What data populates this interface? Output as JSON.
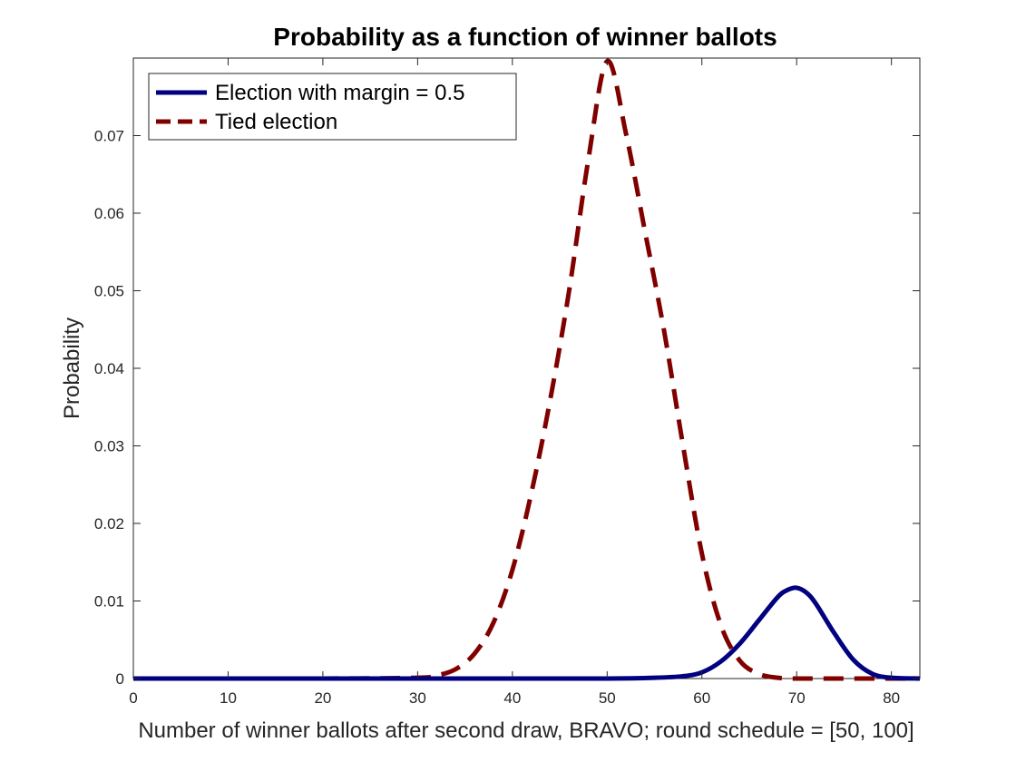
{
  "chart_data": {
    "type": "line",
    "title": "Probability as a function of winner ballots",
    "xlabel": "Number of winner ballots after second draw, BRAVO; round schedule = [50, 100]",
    "ylabel": "Probability",
    "xlim": [
      0,
      83
    ],
    "ylim": [
      0,
      0.08
    ],
    "xticks": [
      0,
      10,
      20,
      30,
      40,
      50,
      60,
      70,
      80
    ],
    "xtick_labels": [
      "0",
      "10",
      "20",
      "30",
      "40",
      "50",
      "60",
      "70",
      "80"
    ],
    "yticks": [
      0,
      0.01,
      0.02,
      0.03,
      0.04,
      0.05,
      0.06,
      0.07
    ],
    "ytick_labels": [
      "0",
      "0.01",
      "0.02",
      "0.03",
      "0.04",
      "0.05",
      "0.06",
      "0.07"
    ],
    "grid": false,
    "legend_position": "top-left",
    "series": [
      {
        "name": "Election with margin = 0.5",
        "style": "solid",
        "color": "#000080",
        "x": [
          0,
          10,
          20,
          30,
          40,
          50,
          55,
          58,
          60,
          62,
          64,
          66,
          68,
          69,
          70,
          71,
          72,
          74,
          76,
          78,
          80,
          83
        ],
        "y": [
          0,
          0,
          0,
          0,
          0,
          0,
          0.0001,
          0.0003,
          0.0008,
          0.0022,
          0.0045,
          0.0075,
          0.0105,
          0.0114,
          0.0117,
          0.0111,
          0.0097,
          0.0058,
          0.0024,
          0.0006,
          0.0001,
          0
        ]
      },
      {
        "name": "Tied election",
        "style": "dashed",
        "color": "#800000",
        "x": [
          0,
          10,
          20,
          30,
          32,
          34,
          36,
          38,
          40,
          42,
          44,
          46,
          48,
          50,
          52,
          54,
          56,
          58,
          60,
          62,
          64,
          66,
          68,
          70,
          75,
          80,
          83
        ],
        "y": [
          0,
          0,
          0,
          0.0001,
          0.0004,
          0.0012,
          0.0032,
          0.0072,
          0.014,
          0.0239,
          0.036,
          0.0501,
          0.0668,
          0.0796,
          0.0702,
          0.0576,
          0.0449,
          0.0301,
          0.0161,
          0.0069,
          0.0023,
          0.0006,
          0.0001,
          0,
          0,
          0,
          0
        ]
      }
    ]
  }
}
